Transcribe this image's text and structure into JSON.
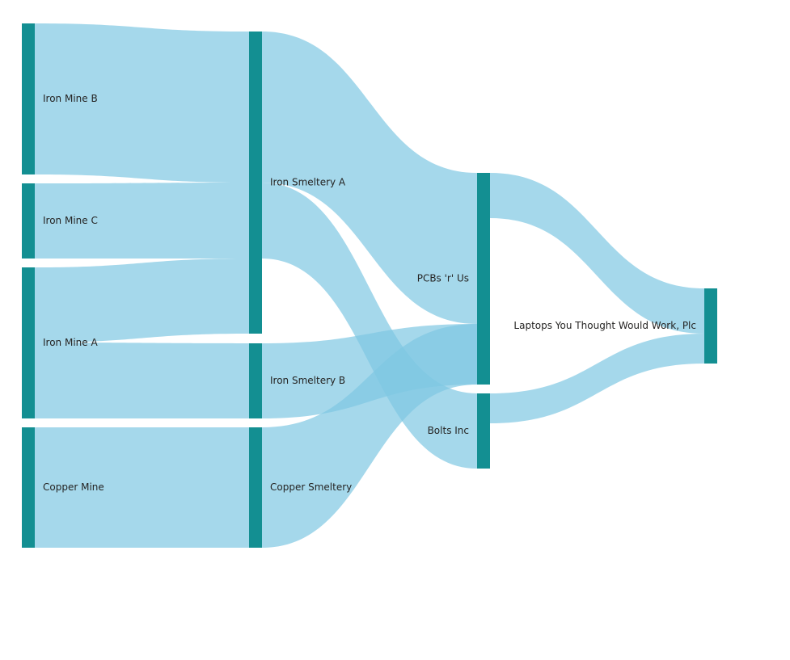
{
  "colors": {
    "node": "#138f92",
    "link": "#7fc7e2",
    "label": "#252423"
  },
  "nodes": [
    {
      "id": "iron-mine-b",
      "label": "Iron Mine B"
    },
    {
      "id": "iron-mine-c",
      "label": "Iron Mine C"
    },
    {
      "id": "iron-mine-a",
      "label": "Iron Mine A"
    },
    {
      "id": "copper-mine",
      "label": "Copper Mine"
    },
    {
      "id": "iron-smeltery-a",
      "label": "Iron Smeltery A"
    },
    {
      "id": "iron-smeltery-b",
      "label": "Iron Smeltery B"
    },
    {
      "id": "copper-smeltery",
      "label": "Copper Smeltery"
    },
    {
      "id": "pcbs-r-us",
      "label": "PCBs 'r' Us"
    },
    {
      "id": "bolts-inc",
      "label": "Bolts Inc"
    },
    {
      "id": "laptops",
      "label": "Laptops You Thought Would Work, Plc"
    }
  ],
  "links": [
    {
      "source": "iron-mine-b",
      "target": "iron-smeltery-a",
      "value": 20
    },
    {
      "source": "iron-mine-c",
      "target": "iron-smeltery-a",
      "value": 10
    },
    {
      "source": "iron-mine-a",
      "target": "iron-smeltery-a",
      "value": 10
    },
    {
      "source": "iron-mine-a",
      "target": "iron-smeltery-b",
      "value": 10
    },
    {
      "source": "copper-mine",
      "target": "copper-smeltery",
      "value": 16
    },
    {
      "source": "iron-smeltery-a",
      "target": "pcbs-r-us",
      "value": 20
    },
    {
      "source": "iron-smeltery-a",
      "target": "bolts-inc",
      "value": 10
    },
    {
      "source": "iron-smeltery-b",
      "target": "bolts-inc",
      "value": 10
    },
    {
      "source": "copper-smeltery",
      "target": "pcbs-r-us",
      "value": 16
    },
    {
      "source": "pcbs-r-us",
      "target": "laptops",
      "value": 6
    },
    {
      "source": "bolts-inc",
      "target": "laptops",
      "value": 4
    }
  ]
}
